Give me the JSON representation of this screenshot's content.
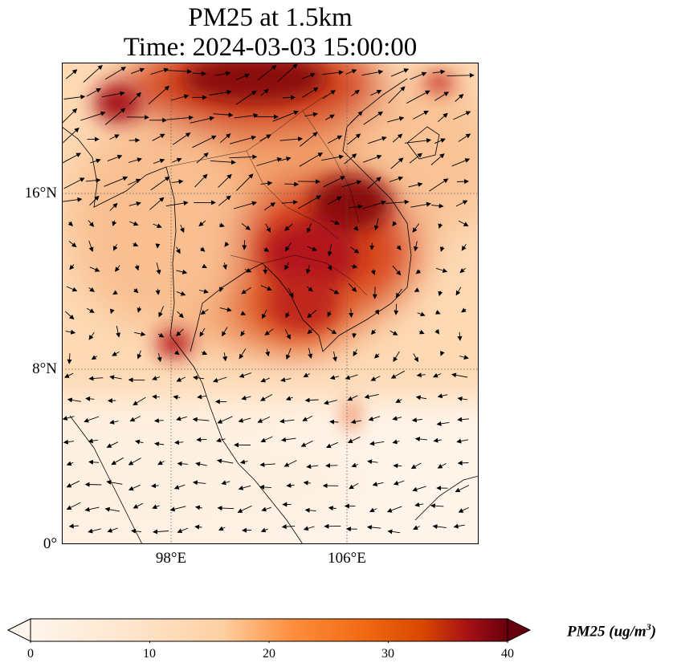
{
  "title": {
    "line1": "PM25 at 1.5km",
    "line2": "Time: 2024-03-03 15:00:00"
  },
  "axes": {
    "lat_ticks": [
      "16°N",
      "8°N",
      "0°"
    ],
    "lon_ticks": [
      "98°E",
      "106°E"
    ]
  },
  "colorbar": {
    "tick_labels": [
      "0",
      "10",
      "20",
      "30",
      "40"
    ],
    "label_prefix": "PM25 (ug/m",
    "label_exp": "3",
    "label_suffix": ")",
    "extend": "both",
    "colormap": [
      "#fff5eb",
      "#fdd0a2",
      "#fd8d3c",
      "#d94801",
      "#a50f15",
      "#67000d"
    ]
  },
  "map": {
    "lon_range": [
      93,
      112
    ],
    "lat_range": [
      0,
      22
    ],
    "gridlines": "dotted",
    "overlay": "wind vectors"
  }
}
